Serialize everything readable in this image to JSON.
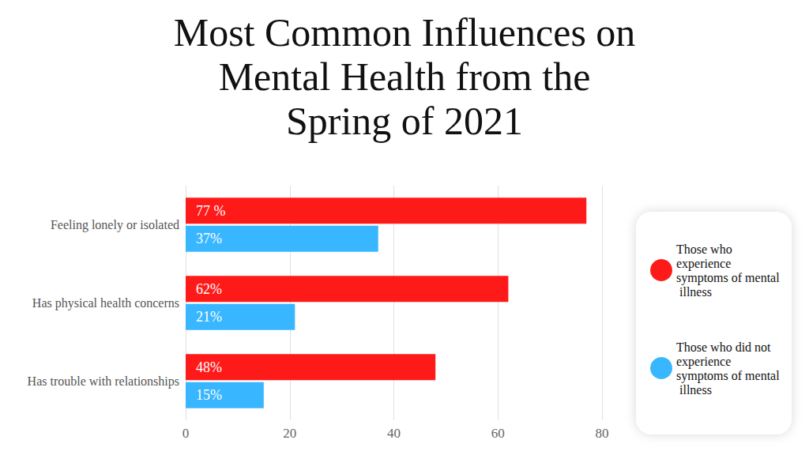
{
  "chart_data": {
    "type": "bar",
    "title": "Most Common Influences on Mental Health from the Spring of 2021",
    "orientation": "horizontal",
    "categories": [
      "Feeling lonely or isolated",
      "Has physical health concerns",
      "Has trouble with relationships"
    ],
    "series": [
      {
        "name": "Those who experience symptoms of mental illness",
        "color": "#ff1a1a",
        "values": [
          77,
          62,
          48
        ],
        "value_labels": [
          "77 %",
          "62%",
          "48%"
        ]
      },
      {
        "name": "Those who did not experience symptoms of mental illness",
        "color": "#38b6ff",
        "values": [
          37,
          21,
          15
        ],
        "value_labels": [
          "37%",
          "21%",
          "15%"
        ]
      }
    ],
    "xlim": [
      0,
      80
    ],
    "xticks": [
      0,
      20,
      40,
      60,
      80
    ],
    "grid": true,
    "legend": "right",
    "data_labels": true
  }
}
